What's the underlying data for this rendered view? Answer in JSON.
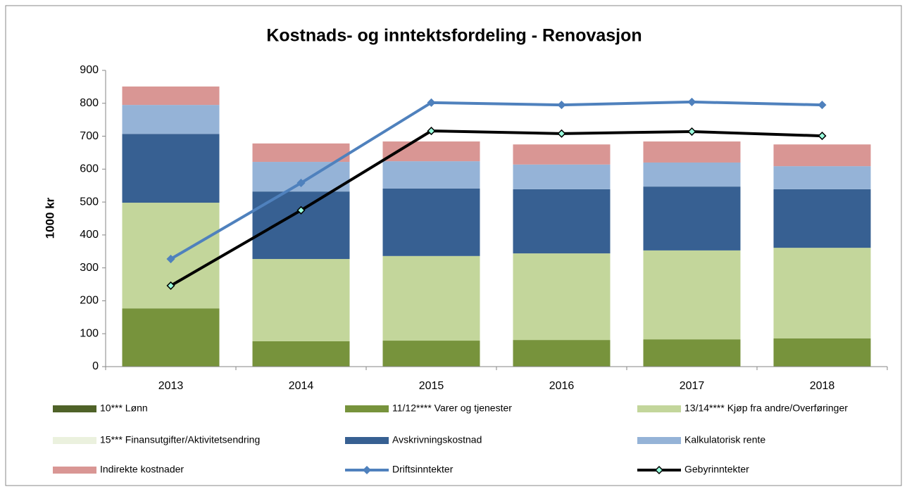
{
  "chart_data": {
    "type": "bar",
    "stacked": true,
    "title": "Kostnads- og inntektsfordeling - Renovasjon",
    "y_label": "1000 kr",
    "categories": [
      "2013",
      "2014",
      "2015",
      "2016",
      "2017",
      "2018"
    ],
    "ylim": [
      0,
      900
    ],
    "yticks": [
      0,
      100,
      200,
      300,
      400,
      500,
      600,
      700,
      800,
      900
    ],
    "grid": false,
    "legend": "bottom",
    "series": [
      {
        "name": "10*** Lønn",
        "type": "bar",
        "color": "#4f6228",
        "values": [
          0,
          0,
          0,
          0,
          0,
          0
        ]
      },
      {
        "name": "11/12**** Varer og tjenester",
        "type": "bar",
        "color": "#77933c",
        "values": [
          177,
          77,
          79,
          81,
          83,
          86
        ]
      },
      {
        "name": "13/14**** Kjøp fra andre/Overføringer",
        "type": "bar",
        "color": "#c3d69b",
        "values": [
          321,
          250,
          257,
          263,
          270,
          275
        ]
      },
      {
        "name": "15*** Finansutgifter/Aktivitetsendring",
        "type": "bar",
        "color": "#ebf1de",
        "values": [
          0,
          0,
          0,
          0,
          0,
          0
        ]
      },
      {
        "name": "Avskrivningskostnad",
        "type": "bar",
        "color": "#376092",
        "values": [
          209,
          205,
          205,
          195,
          194,
          178
        ]
      },
      {
        "name": "Kalkulatorisk rente",
        "type": "bar",
        "color": "#95b3d7",
        "values": [
          88,
          90,
          83,
          75,
          73,
          70
        ]
      },
      {
        "name": "Indirekte kostnader",
        "type": "bar",
        "color": "#d99694",
        "values": [
          56,
          56,
          60,
          61,
          64,
          66
        ]
      },
      {
        "name": "Driftsinntekter",
        "type": "line",
        "color": "#4f81bd",
        "values": [
          327,
          558,
          802,
          795,
          804,
          795
        ]
      },
      {
        "name": "Gebyrinntekter",
        "type": "line",
        "color": "#000000",
        "values": [
          246,
          475,
          716,
          708,
          714,
          701
        ]
      }
    ]
  }
}
